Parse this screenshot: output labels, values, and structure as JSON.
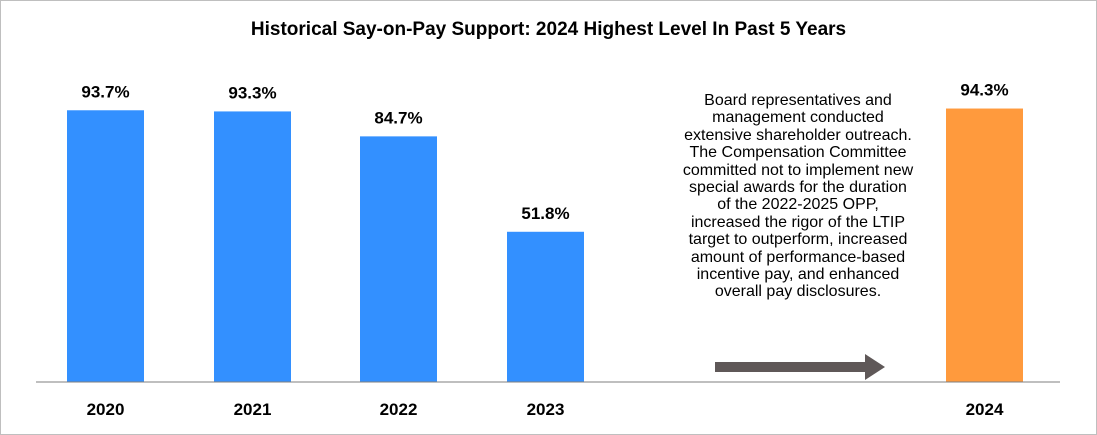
{
  "chart_data": {
    "type": "bar",
    "title": "Historical Say-on-Pay Support: 2024 Highest Level In Past 5 Years",
    "categories": [
      "2020",
      "2021",
      "2022",
      "2023",
      "2024"
    ],
    "values": [
      93.7,
      93.3,
      84.7,
      51.8,
      94.3
    ],
    "data_labels": [
      "93.7%",
      "93.3%",
      "84.7%",
      "51.8%",
      "94.3%"
    ],
    "xlabel": "",
    "ylabel": "",
    "ylim": [
      0,
      100
    ],
    "grid": false,
    "legend": "none",
    "colors": {
      "default_bar": "#3390FF",
      "highlight_bar": "#FF9A3D",
      "axis": "#7f7f7f",
      "arrow": "#5f5858"
    },
    "highlight_category": "2024",
    "annotation": {
      "lines": [
        "Board representatives and",
        "management conducted",
        "extensive shareholder outreach.",
        "The Compensation Committee",
        "committed not to implement new",
        "special awards for the duration",
        "of the 2022-2025 OPP,",
        "increased the rigor of the LTIP",
        "target to outperform, increased",
        "amount of performance-based",
        "incentive pay, and enhanced",
        "overall pay disclosures."
      ],
      "arrow_icon": "right-arrow-icon"
    }
  }
}
